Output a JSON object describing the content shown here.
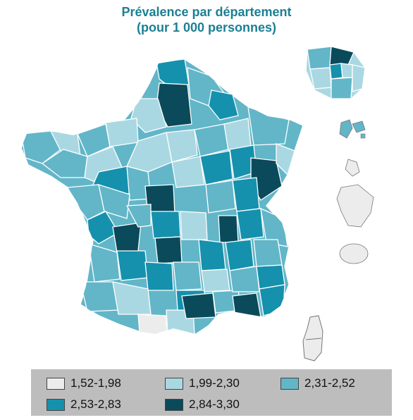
{
  "title": {
    "line1": "Prévalence par département",
    "line2": "(pour 1 000 personnes)"
  },
  "legend": [
    {
      "label": "1,52-1,98",
      "color": "#ececec"
    },
    {
      "label": "1,99-2,30",
      "color": "#aad8e2"
    },
    {
      "label": "2,31-2,52",
      "color": "#62b6c8"
    },
    {
      "label": "2,53-2,83",
      "color": "#1591ad"
    },
    {
      "label": "2,84-3,30",
      "color": "#0b4a5a"
    }
  ],
  "map": {
    "region": "France",
    "classes_shown": [
      "1,52-1,98",
      "1,99-2,30",
      "2,31-2,52",
      "2,53-2,83",
      "2,84-3,30"
    ],
    "insets": [
      "Île-de-France",
      "Guadeloupe",
      "Martinique",
      "Guyane",
      "La Réunion",
      "Corse"
    ]
  }
}
